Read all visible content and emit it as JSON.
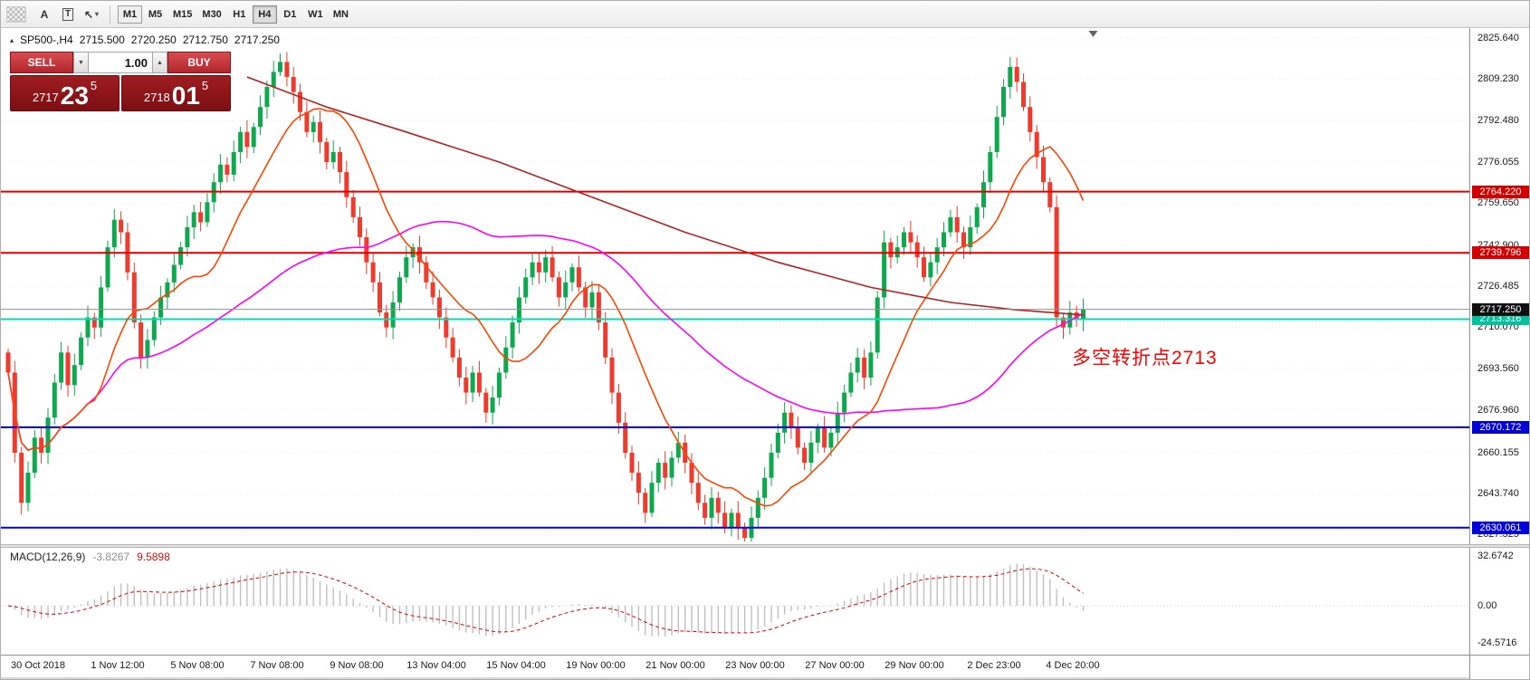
{
  "toolbar": {
    "tools": {
      "text_label": "A",
      "text_box": "T",
      "arrow": "↖",
      "arrow_caret": "▾"
    },
    "timeframes": [
      {
        "label": "M1",
        "state": "outlined"
      },
      {
        "label": "M5",
        "state": "normal"
      },
      {
        "label": "M15",
        "state": "normal"
      },
      {
        "label": "M30",
        "state": "normal"
      },
      {
        "label": "H1",
        "state": "normal"
      },
      {
        "label": "H4",
        "state": "selected"
      },
      {
        "label": "D1",
        "state": "normal"
      },
      {
        "label": "W1",
        "state": "normal"
      },
      {
        "label": "MN",
        "state": "normal"
      }
    ]
  },
  "chart": {
    "symbol_line": {
      "marker": "▴",
      "symbol": "SP500-,H4",
      "open": "2715.500",
      "high": "2720.250",
      "low": "2712.750",
      "close": "2717.250"
    },
    "trade_panel": {
      "sell_label": "SELL",
      "buy_label": "BUY",
      "lot_value": "1.00",
      "spinner_down": "▼",
      "spinner_up": "▲",
      "sell_price": {
        "int": "2717",
        "pips": "23",
        "frac": "5"
      },
      "buy_price": {
        "int": "2718",
        "pips": "01",
        "frac": "5"
      }
    },
    "annotation": {
      "text": "多空转折点2713",
      "color": "#ff0000"
    }
  },
  "chart_data": {
    "type": "candlestick",
    "symbol": "SP500-",
    "timeframe": "H4",
    "ohlc": {
      "open": 2715.5,
      "high": 2720.25,
      "low": 2712.75,
      "close": 2717.25
    },
    "up_color": "#0ea94e",
    "down_color": "#ef3b2d",
    "first_open": 2700,
    "closes": [
      2692,
      2660,
      2640,
      2652,
      2666,
      2660,
      2674,
      2688,
      2700,
      2687,
      2695,
      2706,
      2714,
      2710,
      2726,
      2742,
      2753,
      2748,
      2732,
      2712,
      2698,
      2705,
      2714,
      2722,
      2728,
      2735,
      2742,
      2750,
      2756,
      2752,
      2760,
      2768,
      2775,
      2771,
      2780,
      2788,
      2782,
      2790,
      2798,
      2806,
      2812,
      2816,
      2810,
      2804,
      2796,
      2788,
      2792,
      2784,
      2776,
      2780,
      2772,
      2762,
      2754,
      2746,
      2736,
      2728,
      2716,
      2710,
      2720,
      2730,
      2738,
      2742,
      2736,
      2728,
      2722,
      2714,
      2706,
      2698,
      2690,
      2684,
      2692,
      2684,
      2676,
      2682,
      2692,
      2702,
      2712,
      2722,
      2730,
      2736,
      2732,
      2738,
      2730,
      2722,
      2728,
      2734,
      2726,
      2718,
      2724,
      2712,
      2698,
      2684,
      2672,
      2660,
      2652,
      2644,
      2636,
      2648,
      2656,
      2650,
      2658,
      2664,
      2656,
      2648,
      2640,
      2634,
      2642,
      2636,
      2630,
      2636,
      2630,
      2626,
      2634,
      2642,
      2650,
      2660,
      2668,
      2676,
      2670,
      2662,
      2656,
      2664,
      2670,
      2662,
      2668,
      2676,
      2684,
      2692,
      2698,
      2690,
      2700,
      2722,
      2744,
      2738,
      2742,
      2748,
      2744,
      2738,
      2730,
      2736,
      2742,
      2748,
      2754,
      2748,
      2742,
      2750,
      2758,
      2768,
      2780,
      2794,
      2806,
      2814,
      2808,
      2798,
      2788,
      2778,
      2768,
      2758,
      2714,
      2710,
      2716,
      2713,
      2717.25
    ],
    "price_axis": {
      "top_price": 2829.5,
      "bottom_price": 2623.5,
      "ticks": [
        {
          "label": "2825.640",
          "value": 2825.64
        },
        {
          "label": "2809.230",
          "value": 2809.23
        },
        {
          "label": "2792.480",
          "value": 2792.48
        },
        {
          "label": "2776.055",
          "value": 2776.055
        },
        {
          "label": "2759.650",
          "value": 2759.65
        },
        {
          "label": "2742.900",
          "value": 2742.9
        },
        {
          "label": "2726.485",
          "value": 2726.485
        },
        {
          "label": "2710.070",
          "value": 2710.07
        },
        {
          "label": "2693.560",
          "value": 2693.56
        },
        {
          "label": "2676.960",
          "value": 2676.96
        },
        {
          "label": "2660.155",
          "value": 2660.155
        },
        {
          "label": "2643.740",
          "value": 2643.74
        },
        {
          "label": "2627.325",
          "value": 2627.325
        }
      ]
    },
    "levels": [
      {
        "price": 2764.22,
        "label": "2764.220",
        "color": "#dd0000",
        "tag_bg": "#d40000"
      },
      {
        "price": 2739.796,
        "label": "2739.796",
        "color": "#dd0000",
        "tag_bg": "#d40000"
      },
      {
        "price": 2713.316,
        "label": "2713.316",
        "color": "#00dcb4",
        "tag_bg": "#00c3a0"
      },
      {
        "price": 2670.172,
        "label": "2670.172",
        "color": "#0000e0",
        "tag_bg": "#0000d8"
      },
      {
        "price": 2630.061,
        "label": "2630.061",
        "color": "#0000e0",
        "tag_bg": "#0000d8"
      }
    ],
    "current_price": {
      "label": "2717.250",
      "value": 2717.25,
      "tag_bg": "#101010"
    },
    "ma_fast": {
      "period": 13,
      "color": "#ff4500"
    },
    "ma_mid": {
      "period": 55,
      "color": "#ff00ff"
    },
    "ma_slow": {
      "color": "#b22222",
      "points": [
        [
          36,
          2810
        ],
        [
          48,
          2798
        ],
        [
          60,
          2788
        ],
        [
          74,
          2776
        ],
        [
          88,
          2762
        ],
        [
          102,
          2748
        ],
        [
          116,
          2736
        ],
        [
          130,
          2726
        ],
        [
          142,
          2720
        ],
        [
          152,
          2717
        ],
        [
          162,
          2715
        ]
      ]
    },
    "time_axis": [
      "30 Oct 2018",
      "1 Nov 12:00",
      "5 Nov 08:00",
      "7 Nov 08:00",
      "9 Nov 08:00",
      "13 Nov 04:00",
      "15 Nov 04:00",
      "19 Nov 00:00",
      "21 Nov 00:00",
      "23 Nov 00:00",
      "27 Nov 00:00",
      "29 Nov 00:00",
      "2 Dec 23:00",
      "4 Dec 20:00"
    ],
    "macd": {
      "label": "MACD(12,26,9)",
      "value": "-3.8267",
      "signal_value": "9.5898",
      "fast": 12,
      "slow": 26,
      "signal_period": 9,
      "hist_color": "#c0c0c0",
      "line_color": "#e00000",
      "axis": [
        {
          "label": "32.6742",
          "value": 32.6742
        },
        {
          "label": "0.00",
          "value": 0
        },
        {
          "label": "-24.5716",
          "value": -24.5716
        }
      ]
    }
  }
}
